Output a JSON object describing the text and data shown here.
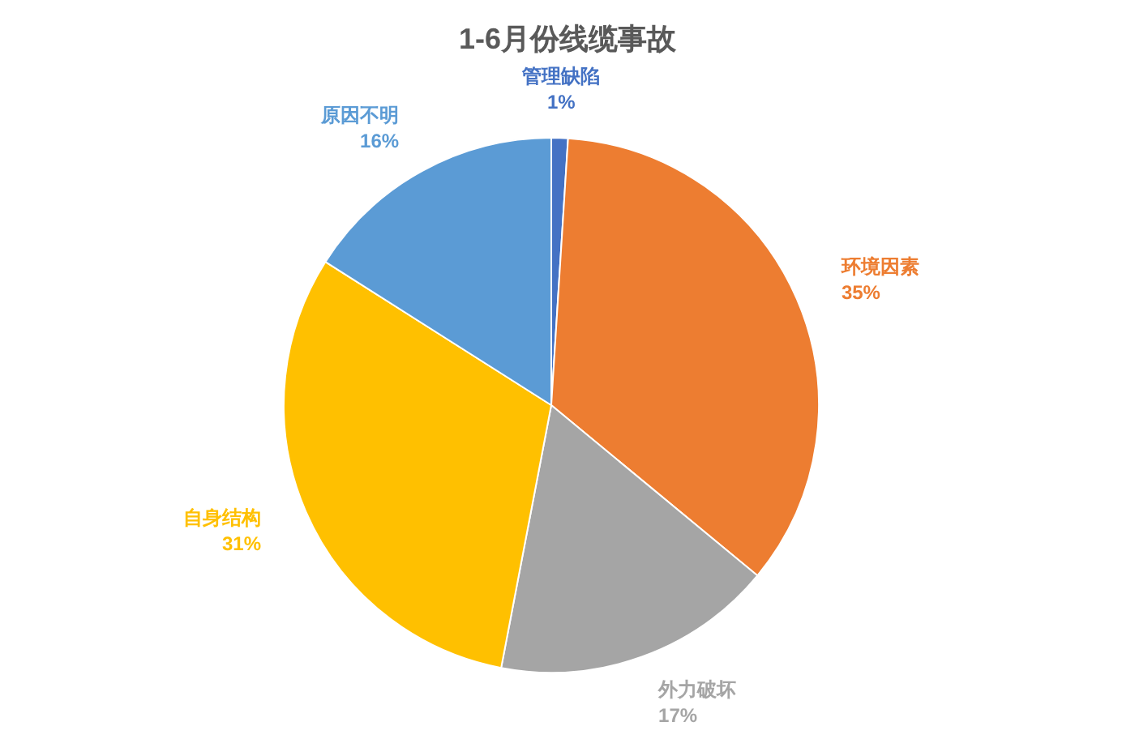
{
  "chart_data": {
    "type": "pie",
    "title": "1-6月份线缆事故",
    "categories": [
      "管理缺陷",
      "环境因素",
      "外力破坏",
      "自身结构",
      "原因不明"
    ],
    "values": [
      1,
      35,
      17,
      31,
      16
    ],
    "value_labels": [
      "1%",
      "35%",
      "17%",
      "31%",
      "16%"
    ],
    "colors": [
      "#4472c4",
      "#ed7d31",
      "#a5a5a5",
      "#ffc000",
      "#5b9bd5"
    ],
    "legend": false
  }
}
